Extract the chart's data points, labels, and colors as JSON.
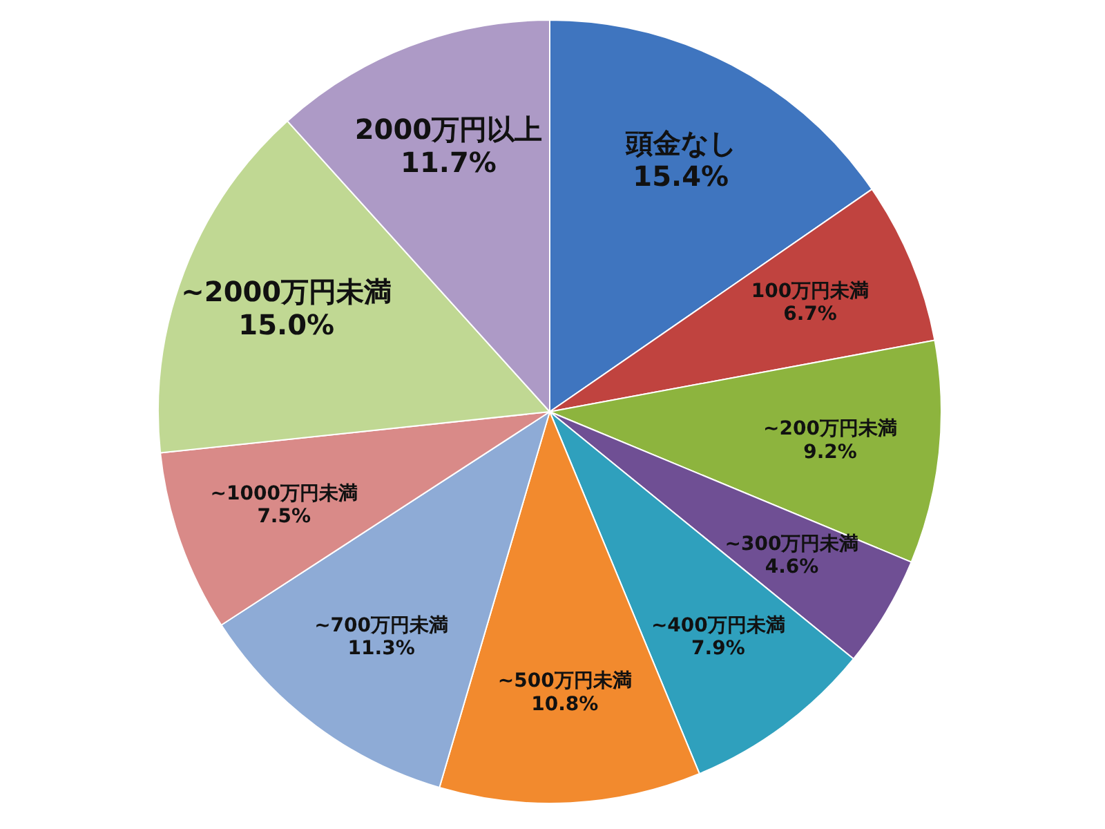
{
  "chart_data": {
    "type": "pie",
    "categories": [
      "頭金なし",
      "100万円未満",
      "~200万円未満",
      "~300万円未満",
      "~400万円未満",
      "~500万円未満",
      "~700万円未満",
      "~1000万円未満",
      "~2000万円未満",
      "2000万円以上"
    ],
    "values": [
      15.4,
      6.7,
      9.2,
      4.6,
      7.9,
      10.8,
      11.3,
      7.5,
      15.0,
      11.7
    ],
    "value_labels": [
      "15.4%",
      "6.7%",
      "9.2%",
      "4.6%",
      "7.9%",
      "10.8%",
      "11.3%",
      "7.5%",
      "15.0%",
      "11.7%"
    ],
    "colors": [
      "#3f75bf",
      "#c0433f",
      "#8db43e",
      "#6f4f94",
      "#2fa0bd",
      "#f28a2e",
      "#8eabd6",
      "#d98a88",
      "#c0d893",
      "#ad9ac6"
    ]
  }
}
